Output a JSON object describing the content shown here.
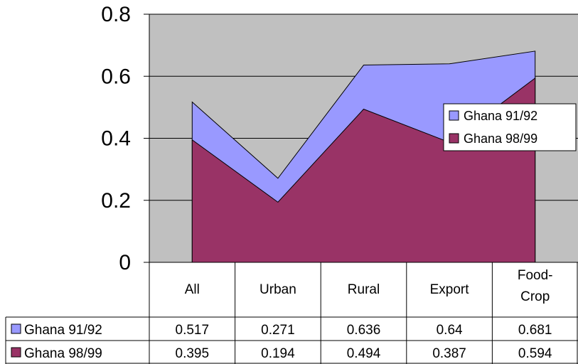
{
  "chart_data": {
    "type": "area",
    "categories": [
      "All",
      "Urban",
      "Rural",
      "Export",
      "Food-\nCrop"
    ],
    "series": [
      {
        "name": "Ghana 91/92",
        "values": [
          0.517,
          0.271,
          0.636,
          0.64,
          0.681
        ],
        "value_labels": [
          "0.517",
          "0.271",
          "0.636",
          "0.64",
          "0.681"
        ],
        "color": "#9999ff"
      },
      {
        "name": "Ghana 98/99",
        "values": [
          0.395,
          0.194,
          0.494,
          0.387,
          0.594
        ],
        "value_labels": [
          "0.395",
          "0.194",
          "0.494",
          "0.387",
          "0.594"
        ],
        "color": "#993366"
      }
    ],
    "ylim": [
      0,
      0.8
    ],
    "yticks": [
      "0",
      "0.2",
      "0.4",
      "0.6",
      "0.8"
    ],
    "plot_background": "#c0c0c0",
    "grid": true,
    "legend": "right",
    "data_table": true
  }
}
